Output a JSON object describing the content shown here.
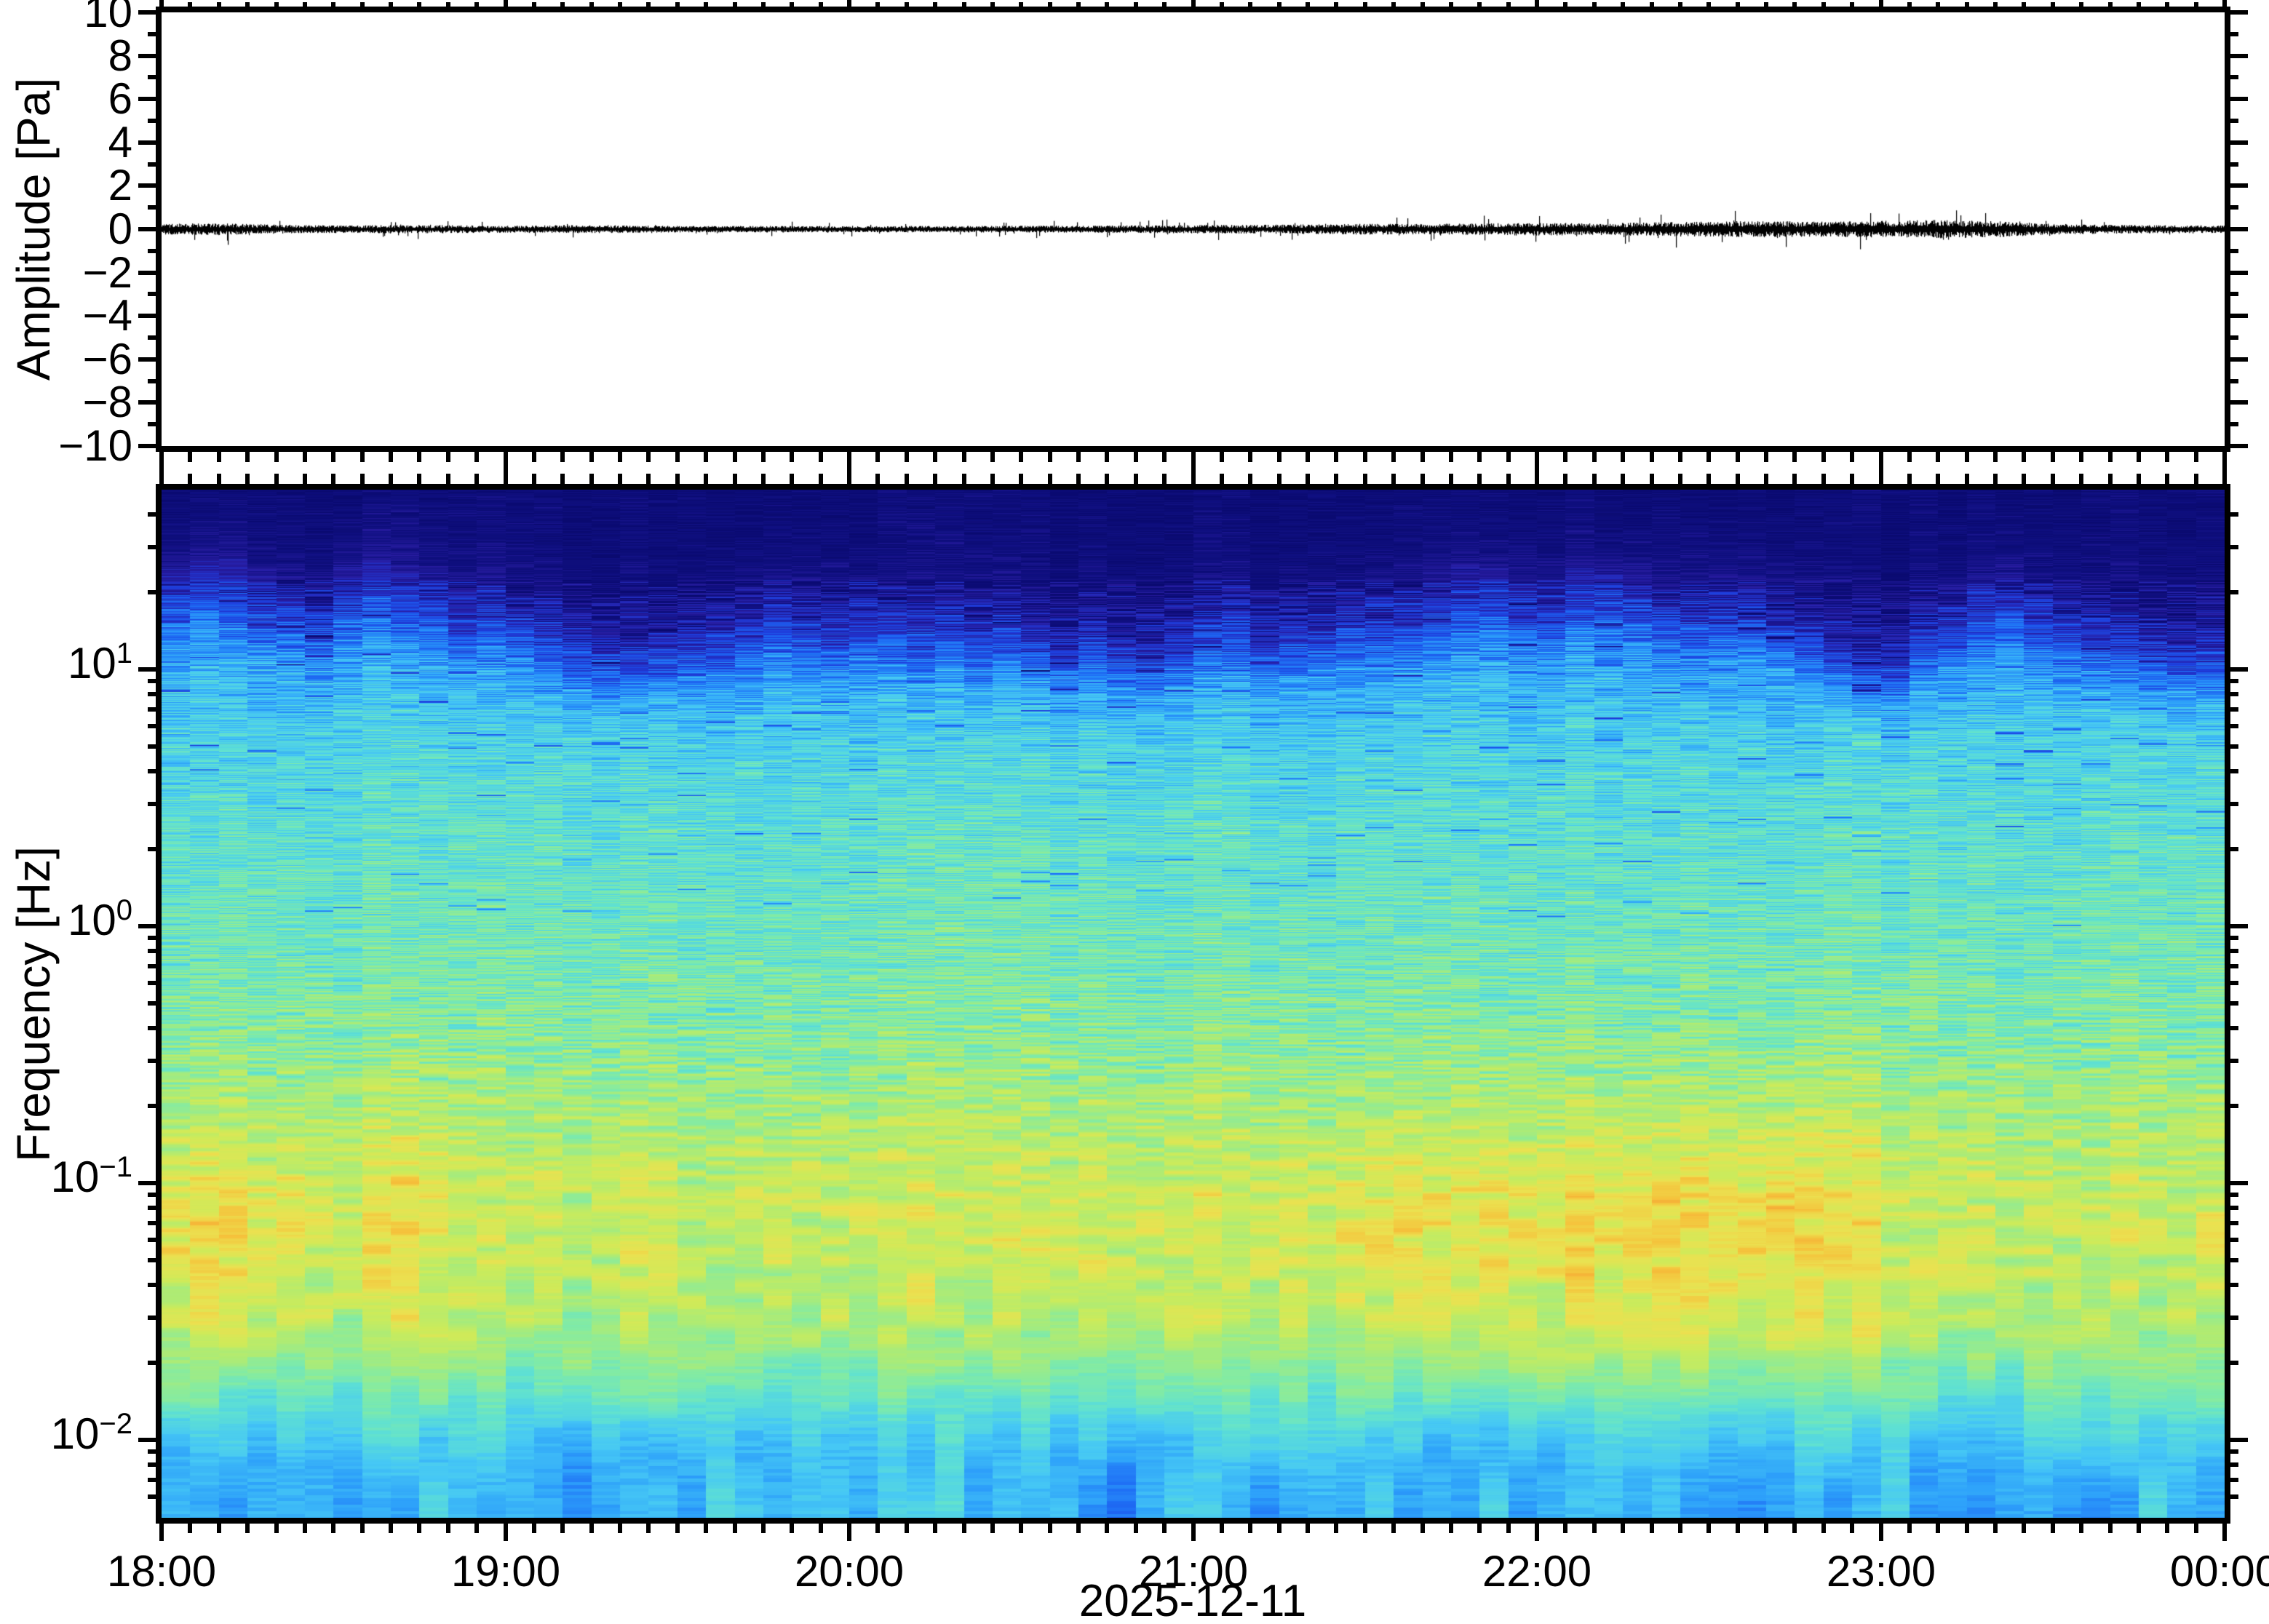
{
  "figure": {
    "waveform_panel": {
      "ylabel": "Amplitude [Pa]"
    },
    "spectrogram_panel": {
      "ylabel": "Frequency [Hz]"
    },
    "x_axis": {
      "tick_labels": [
        "18:00",
        "19:00",
        "20:00",
        "21:00",
        "22:00",
        "23:00",
        "00:00"
      ],
      "date_label": "2025-12-11"
    },
    "amplitude_tick_labels": [
      "10",
      "8",
      "6",
      "4",
      "2",
      "0",
      "−2",
      "−4",
      "−6",
      "−8",
      "−10"
    ],
    "frequency_tick_base": "10",
    "frequency_tick_exponents": [
      "1",
      "0",
      "−1",
      "−2"
    ]
  },
  "chart_data": [
    {
      "type": "line",
      "name": "infrasound-waveform",
      "ylabel": "Amplitude [Pa]",
      "ylim": [
        -10,
        10
      ],
      "y_major_step": 2,
      "y_minor_step": 1,
      "x_range": [
        "18:00",
        "00:00"
      ],
      "x_major_step_minutes": 60,
      "x_minor_step_minutes": 5,
      "date": "2025-12-11",
      "baseline_value": 0,
      "envelope_pa_per_10min": [
        0.2,
        0.22,
        0.17,
        0.14,
        0.16,
        0.15,
        0.13,
        0.15,
        0.14,
        0.12,
        0.12,
        0.12,
        0.11,
        0.12,
        0.12,
        0.13,
        0.13,
        0.14,
        0.16,
        0.16,
        0.18,
        0.2,
        0.19,
        0.22,
        0.24,
        0.22,
        0.26,
        0.28,
        0.3,
        0.28,
        0.31,
        0.34,
        0.3,
        0.2,
        0.16,
        0.15,
        0.14
      ],
      "description": "near-zero noise trace, bursts grow toward 22:00-23:00 then calm"
    },
    {
      "type": "heatmap",
      "name": "spectrogram",
      "ylabel": "Frequency [Hz]",
      "freq_range_hz": [
        0.005,
        50
      ],
      "log_y_axis": true,
      "decade_ticks": [
        10,
        1,
        0.1,
        0.01
      ],
      "time_range": [
        "18:00",
        "00:00"
      ],
      "time_bin_minutes": 5,
      "columns": 72,
      "freq_bin_hz": 0.005,
      "noise_seed": 7,
      "colormap_stops": [
        [
          0.0,
          [
            10,
            10,
            112
          ]
        ],
        [
          0.07,
          [
            16,
            16,
            130
          ]
        ],
        [
          0.13,
          [
            40,
            28,
            160
          ]
        ],
        [
          0.2,
          [
            30,
            60,
            220
          ]
        ],
        [
          0.28,
          [
            30,
            110,
            245
          ]
        ],
        [
          0.35,
          [
            45,
            160,
            250
          ]
        ],
        [
          0.42,
          [
            70,
            200,
            245
          ]
        ],
        [
          0.5,
          [
            95,
            225,
            210
          ]
        ],
        [
          0.57,
          [
            130,
            235,
            165
          ]
        ],
        [
          0.64,
          [
            170,
            235,
            120
          ]
        ],
        [
          0.71,
          [
            205,
            235,
            90
          ]
        ],
        [
          0.78,
          [
            235,
            225,
            80
          ]
        ],
        [
          0.85,
          [
            245,
            195,
            60
          ]
        ],
        [
          0.92,
          [
            245,
            155,
            50
          ]
        ],
        [
          1.0,
          [
            235,
            100,
            35
          ]
        ]
      ],
      "profile_log10f": [
        -2.31,
        -2.1,
        -1.95,
        -1.8,
        -1.62,
        -1.45,
        -1.25,
        -1.05,
        -0.85,
        -0.65,
        -0.45,
        -0.25,
        -0.05,
        0.15,
        0.35,
        0.55,
        0.75,
        0.9,
        1.02,
        1.12,
        1.22,
        1.32,
        1.42,
        1.55,
        1.7
      ],
      "profile_value": [
        0.38,
        0.39,
        0.44,
        0.52,
        0.6,
        0.63,
        0.65,
        0.66,
        0.64,
        0.61,
        0.58,
        0.555,
        0.535,
        0.52,
        0.5,
        0.475,
        0.445,
        0.4,
        0.345,
        0.27,
        0.19,
        0.125,
        0.075,
        0.048,
        0.036
      ],
      "column_low_freq_heat": [
        0.1,
        0.12,
        0.1,
        0.08,
        0.09,
        0.06,
        0.05,
        0.1,
        0.12,
        0.08,
        0.05,
        0.04,
        0.03,
        0.04,
        0.02,
        0.03,
        0.05,
        0.04,
        0.02,
        0.03,
        0.05,
        0.04,
        0.03,
        0.04,
        0.05,
        0.04,
        0.06,
        0.05,
        0.04,
        0.05,
        0.04,
        0.05,
        0.06,
        0.05,
        0.06,
        0.05,
        0.06,
        0.05,
        0.07,
        0.08,
        0.06,
        0.08,
        0.09,
        0.11,
        0.08,
        0.1,
        0.12,
        0.09,
        0.1,
        0.13,
        0.11,
        0.12,
        0.14,
        0.12,
        0.13,
        0.11,
        0.14,
        0.12,
        0.1,
        0.12,
        0.06,
        0.04,
        0.05,
        0.04,
        0.03,
        0.04,
        0.04,
        0.03,
        0.04,
        0.03,
        0.04,
        0.05
      ],
      "column_high_freq_darkness": [
        -0.06,
        -0.08,
        -0.05,
        -0.02,
        0.0,
        0.02,
        -0.04,
        -0.06,
        -0.03,
        0.0,
        0.04,
        0.02,
        0.05,
        0.08,
        0.1,
        0.13,
        0.15,
        0.12,
        0.1,
        0.08,
        0.05,
        0.02,
        0.04,
        0.06,
        0.03,
        0.05,
        0.08,
        0.06,
        0.09,
        0.07,
        0.1,
        0.12,
        0.09,
        0.11,
        0.13,
        0.1,
        0.08,
        0.06,
        0.09,
        0.07,
        0.05,
        0.03,
        0.04,
        0.02,
        0.0,
        -0.02,
        -0.04,
        -0.01,
        0.0,
        -0.03,
        -0.05,
        -0.02,
        0.0,
        0.02,
        -0.01,
        0.01,
        0.03,
        0.08,
        0.14,
        0.18,
        0.16,
        0.1,
        0.04,
        0.0,
        -0.02,
        0.02,
        0.05,
        0.08,
        0.1,
        0.12,
        0.14,
        0.13
      ]
    }
  ]
}
